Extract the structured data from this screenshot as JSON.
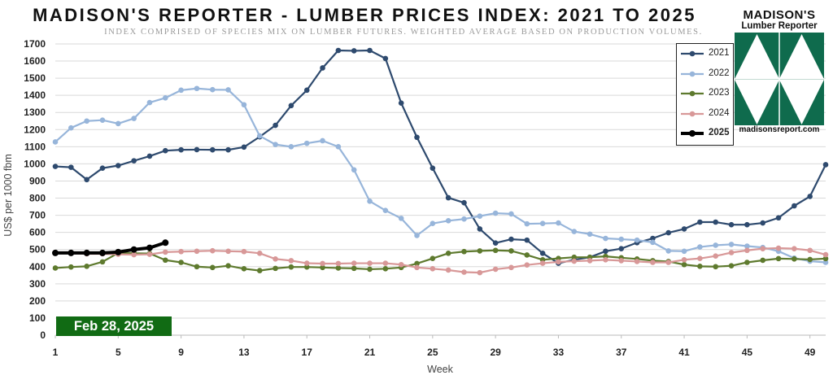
{
  "chart_data": {
    "type": "line",
    "title": "MADISON'S REPORTER - LUMBER PRICES INDEX: 2021 TO 2025",
    "subtitle": "INDEX COMPRISED OF SPECIES MIX ON LUMBER FUTURES. WEIGHTED AVERAGE BASED ON PRODUCTION VOLUMES.",
    "xlabel": "Week",
    "ylabel": "US$ per 1000 fbm",
    "xlim": [
      1,
      50
    ],
    "ylim": [
      0,
      1700
    ],
    "xticks": [
      1,
      5,
      9,
      13,
      17,
      21,
      25,
      29,
      33,
      37,
      41,
      45,
      49
    ],
    "yticks": [
      0,
      100,
      200,
      300,
      400,
      500,
      600,
      700,
      800,
      900,
      1000,
      1100,
      1200,
      1300,
      1400,
      1500,
      1600,
      1700
    ],
    "grid": true,
    "legend_position": "top-right",
    "series": [
      {
        "name": "2021",
        "color": "#2e4a6e",
        "values": [
          985,
          980,
          908,
          975,
          990,
          1018,
          1045,
          1077,
          1082,
          1083,
          1082,
          1082,
          1098,
          1158,
          1225,
          1340,
          1430,
          1560,
          1662,
          1660,
          1662,
          1615,
          1355,
          1155,
          975,
          802,
          773,
          620,
          538,
          560,
          555,
          478,
          420,
          440,
          455,
          490,
          505,
          540,
          565,
          598,
          620,
          660,
          660,
          645,
          645,
          655,
          685,
          755,
          810,
          995
        ]
      },
      {
        "name": "2022",
        "color": "#97b5da",
        "values": [
          1128,
          1210,
          1250,
          1255,
          1235,
          1265,
          1358,
          1385,
          1430,
          1440,
          1433,
          1432,
          1345,
          1163,
          1113,
          1100,
          1120,
          1135,
          1100,
          965,
          782,
          728,
          682,
          582,
          652,
          668,
          678,
          695,
          712,
          708,
          650,
          652,
          655,
          605,
          590,
          565,
          560,
          555,
          542,
          492,
          490,
          515,
          525,
          530,
          520,
          512,
          490,
          450,
          432,
          425
        ]
      },
      {
        "name": "2023",
        "color": "#5e7a2e",
        "values": [
          392,
          398,
          402,
          428,
          480,
          478,
          477,
          438,
          425,
          400,
          395,
          405,
          388,
          377,
          390,
          398,
          398,
          395,
          392,
          390,
          385,
          388,
          395,
          418,
          448,
          478,
          488,
          492,
          495,
          492,
          468,
          440,
          448,
          455,
          455,
          460,
          452,
          445,
          435,
          430,
          412,
          402,
          400,
          405,
          425,
          437,
          447,
          445,
          442,
          447
        ]
      },
      {
        "name": "2024",
        "color": "#d89898",
        "values": [
          478,
          478,
          475,
          475,
          472,
          470,
          472,
          485,
          488,
          490,
          493,
          490,
          488,
          478,
          445,
          435,
          420,
          418,
          418,
          420,
          420,
          420,
          412,
          395,
          388,
          380,
          368,
          365,
          385,
          395,
          410,
          420,
          428,
          432,
          435,
          440,
          435,
          430,
          425,
          425,
          440,
          448,
          462,
          482,
          495,
          505,
          508,
          505,
          495,
          470
        ]
      },
      {
        "name": "2025",
        "color": "#000000",
        "values": [
          480,
          480,
          480,
          480,
          485,
          500,
          510,
          540
        ]
      }
    ]
  },
  "logo": {
    "name": "MADISON'S",
    "subtitle": "Lumber Reporter",
    "url": "madisonsreport.com"
  },
  "badge": {
    "date": "Feb 28, 2025"
  }
}
